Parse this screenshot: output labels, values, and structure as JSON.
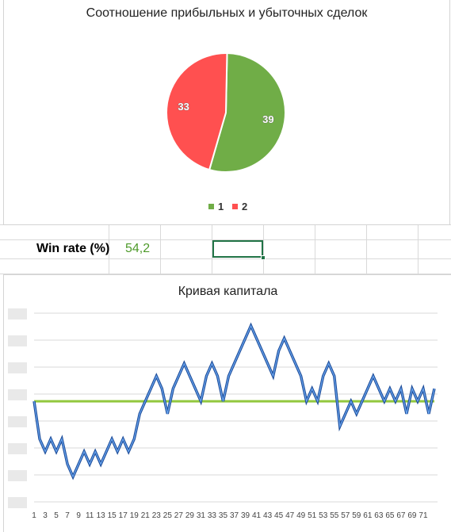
{
  "win_rate": {
    "label": "Win rate (%)",
    "value": "54,2"
  },
  "chart_data": [
    {
      "type": "pie",
      "title": "Соотношение прибыльных и убыточных сделок",
      "legend_position": "bottom",
      "slices": [
        {
          "label": "1",
          "value": 39,
          "color": "#70ad47"
        },
        {
          "label": "2",
          "value": 33,
          "color": "#ff5050"
        }
      ]
    },
    {
      "type": "line",
      "title": "Кривая капитала",
      "grid": true,
      "legend": false,
      "x_ticks": [
        1,
        3,
        5,
        7,
        9,
        11,
        13,
        15,
        17,
        19,
        21,
        23,
        25,
        27,
        29,
        31,
        33,
        35,
        37,
        39,
        41,
        43,
        45,
        47,
        49,
        51,
        53,
        55,
        57,
        59,
        61,
        63,
        65,
        67,
        69,
        71
      ],
      "series": [
        {
          "color": "#3d7bd6",
          "values": [
            0,
            -3,
            -4,
            -3,
            -4,
            -3,
            -5,
            -6,
            -5,
            -4,
            -5,
            -4,
            -5,
            -4,
            -3,
            -4,
            -3,
            -4,
            -3,
            -1,
            0,
            1,
            2,
            1,
            -1,
            1,
            2,
            3,
            2,
            1,
            0,
            2,
            3,
            2,
            0,
            2,
            3,
            4,
            5,
            6,
            5,
            4,
            3,
            2,
            4,
            5,
            4,
            3,
            2,
            0,
            1,
            0,
            2,
            3,
            2,
            -2,
            -1,
            0,
            -1,
            0,
            1,
            2,
            1,
            0,
            1,
            0,
            1,
            -1,
            1,
            0,
            1,
            -1,
            1
          ],
          "x": [
            1,
            2,
            3,
            4,
            5,
            6,
            7,
            8,
            9,
            10,
            11,
            12,
            13,
            14,
            15,
            16,
            17,
            18,
            19,
            20,
            21,
            22,
            23,
            24,
            25,
            26,
            27,
            28,
            29,
            30,
            31,
            32,
            33,
            34,
            35,
            36,
            37,
            38,
            39,
            40,
            41,
            42,
            43,
            44,
            45,
            46,
            47,
            48,
            49,
            50,
            51,
            52,
            53,
            54,
            55,
            56,
            57,
            58,
            59,
            60,
            61,
            62,
            63,
            64,
            65,
            66,
            67,
            68,
            69,
            70,
            71,
            72,
            73
          ]
        },
        {
          "color": "#92c83e",
          "values": [
            0
          ],
          "x": [
            1
          ],
          "type": "hline"
        }
      ]
    }
  ]
}
